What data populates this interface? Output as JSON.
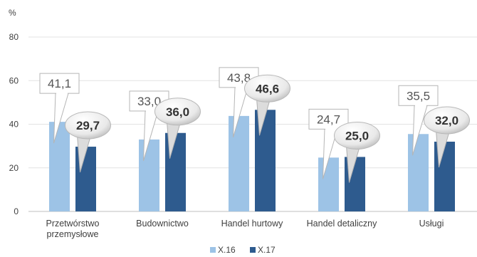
{
  "chart_data": {
    "type": "bar",
    "unit_label": "%",
    "categories": [
      [
        "Przetwórstwo",
        "przemysłowe"
      ],
      [
        "Budownictwo"
      ],
      [
        "Handel hurtowy"
      ],
      [
        "Handel detaliczny"
      ],
      [
        "Usługi"
      ]
    ],
    "series": [
      {
        "name": "X.16",
        "color": "#9dc3e6",
        "values": [
          41.1,
          33.0,
          43.8,
          24.7,
          35.5
        ],
        "labels": [
          "41,1",
          "33,0",
          "43,8",
          "24,7",
          "35,5"
        ]
      },
      {
        "name": "X.17",
        "color": "#2e5b8e",
        "values": [
          29.7,
          36.0,
          46.6,
          25.0,
          32.0
        ],
        "labels": [
          "29,7",
          "36,0",
          "46,6",
          "25,0",
          "32,0"
        ]
      }
    ],
    "y_ticks": [
      "0",
      "20",
      "40",
      "60",
      "80"
    ],
    "ylim": [
      0,
      80
    ],
    "grid": true,
    "legend_position": "bottom-center"
  }
}
